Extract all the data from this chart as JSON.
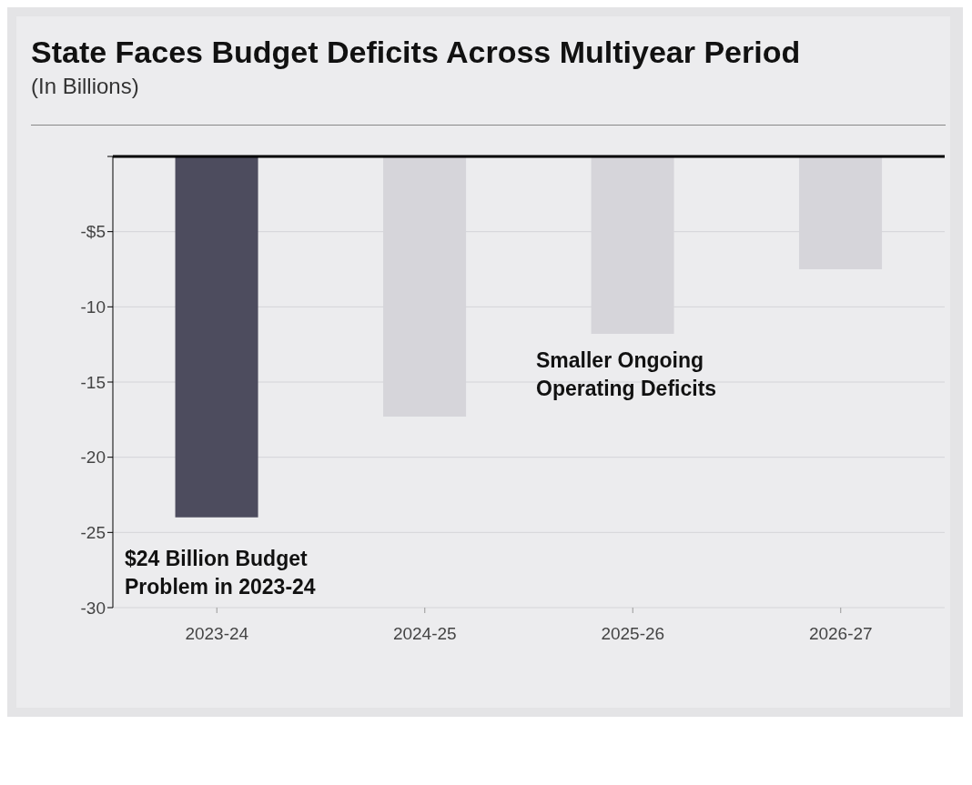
{
  "chart_data": {
    "type": "bar",
    "title": "State Faces Budget Deficits Across Multiyear Period",
    "subtitle": "(In Billions)",
    "categories": [
      "2023-24",
      "2024-25",
      "2025-26",
      "2026-27"
    ],
    "values": [
      -24,
      -17.3,
      -11.8,
      -7.5
    ],
    "colors": [
      "#4d4c5e",
      "#d6d5da",
      "#d6d5da",
      "#d6d5da"
    ],
    "ylim": [
      -30,
      0
    ],
    "yticks": [
      {
        "value": -30,
        "label": "-30"
      },
      {
        "value": -25,
        "label": "-25"
      },
      {
        "value": -20,
        "label": "-20"
      },
      {
        "value": -15,
        "label": "-15"
      },
      {
        "value": -10,
        "label": "-10"
      },
      {
        "value": -5,
        "label": "-$5"
      },
      {
        "value": 0,
        "label": null
      }
    ],
    "grid": "y",
    "ref_lines": [
      {
        "axis": "y",
        "value": 0,
        "color": "#000000"
      }
    ],
    "annotations": [
      "$24 Billion Budget Problem in 2023-24",
      "Smaller Ongoing Operating Deficits"
    ]
  }
}
